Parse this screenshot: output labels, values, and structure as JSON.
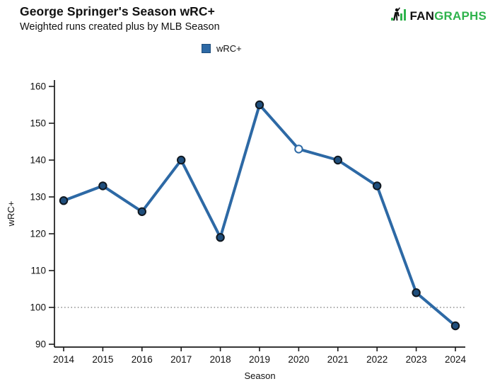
{
  "header": {
    "title": "George Springer's Season wRC+",
    "subtitle": "Weighted runs created plus by MLB Season"
  },
  "logo": {
    "fan_text": "FAN",
    "graphs_text": "GRAPHS",
    "green": "#2eb34c",
    "black": "#111111"
  },
  "legend": {
    "label": "wRC+"
  },
  "chart_data": {
    "type": "line",
    "title": "George Springer's Season wRC+",
    "subtitle": "Weighted runs created plus by MLB Season",
    "xlabel": "Season",
    "ylabel": "wRC+",
    "categories": [
      "2014",
      "2015",
      "2016",
      "2017",
      "2018",
      "2019",
      "2020",
      "2021",
      "2022",
      "2023",
      "2024"
    ],
    "series": [
      {
        "name": "wRC+",
        "values": [
          129,
          133,
          126,
          140,
          119,
          155,
          143,
          140,
          133,
          104,
          95
        ],
        "open_marker_indices": [
          6
        ]
      }
    ],
    "ylim": [
      90,
      160
    ],
    "yticks": [
      90,
      100,
      110,
      120,
      130,
      140,
      150,
      160
    ],
    "reference_line_y": 100,
    "grid": false,
    "legend_position": "top-center",
    "colors": {
      "line": "#2d69a5",
      "marker_fill": "#1f4e7c",
      "marker_stroke": "#101820",
      "open_marker_fill": "#ffffff",
      "reference_line": "#8a8a8a",
      "axis": "#1a1a1a",
      "text": "#111111"
    }
  }
}
